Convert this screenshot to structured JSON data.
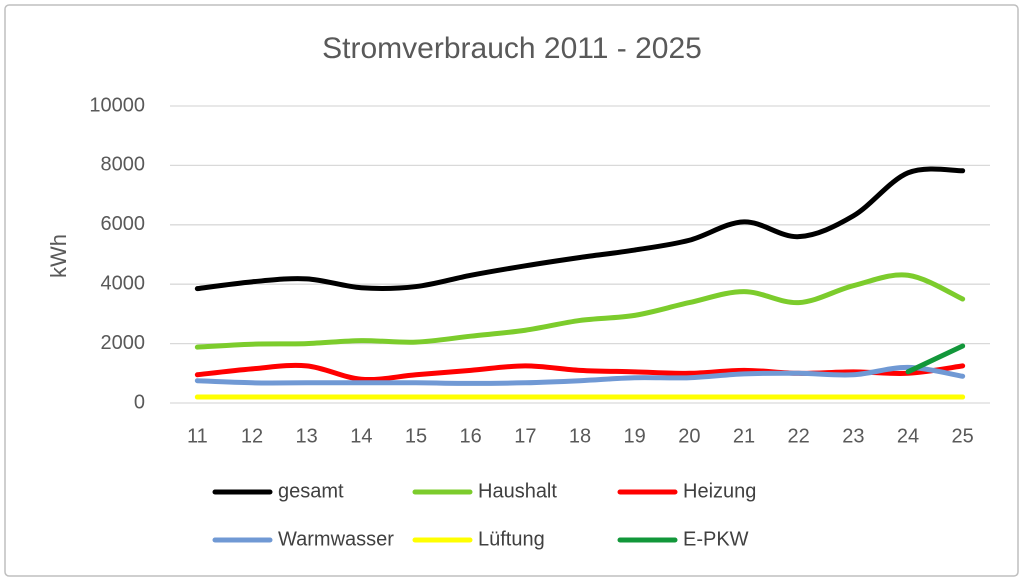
{
  "chart_data": {
    "type": "line",
    "title": "Stromverbrauch 2011 - 2025",
    "y_label": "kWh",
    "categories": [
      "11",
      "12",
      "13",
      "14",
      "15",
      "16",
      "17",
      "18",
      "19",
      "20",
      "21",
      "22",
      "23",
      "24",
      "25"
    ],
    "series": [
      {
        "name": "gesamt",
        "color": "#000000",
        "values": [
          3850,
          4080,
          4180,
          3880,
          3920,
          4300,
          4620,
          4900,
          5150,
          5480,
          6100,
          5600,
          6300,
          7750,
          7820
        ]
      },
      {
        "name": "Haushalt",
        "color": "#7ccc2c",
        "values": [
          1880,
          1980,
          2000,
          2100,
          2050,
          2250,
          2450,
          2780,
          2950,
          3380,
          3750,
          3380,
          3950,
          4300,
          3500
        ]
      },
      {
        "name": "Heizung",
        "color": "#ff0000",
        "values": [
          950,
          1150,
          1250,
          800,
          950,
          1100,
          1250,
          1100,
          1050,
          1000,
          1100,
          1000,
          1050,
          1000,
          1250
        ]
      },
      {
        "name": "Warmwasser",
        "color": "#7099d4",
        "values": [
          750,
          680,
          680,
          680,
          680,
          660,
          680,
          750,
          850,
          850,
          980,
          1000,
          950,
          1200,
          900
        ]
      },
      {
        "name": "Lüftung",
        "color": "#ffff00",
        "values": [
          200,
          200,
          200,
          200,
          200,
          200,
          200,
          200,
          200,
          200,
          200,
          200,
          200,
          200,
          200
        ]
      },
      {
        "name": "E-PKW",
        "color": "#12973a",
        "values": [
          null,
          null,
          null,
          null,
          null,
          null,
          null,
          null,
          null,
          null,
          null,
          null,
          null,
          1050,
          1920
        ]
      }
    ],
    "ylim": [
      0,
      10000
    ],
    "yticks": [
      0,
      2000,
      4000,
      6000,
      8000,
      10000
    ],
    "grid": true,
    "legend": "bottom",
    "smooth": true
  }
}
